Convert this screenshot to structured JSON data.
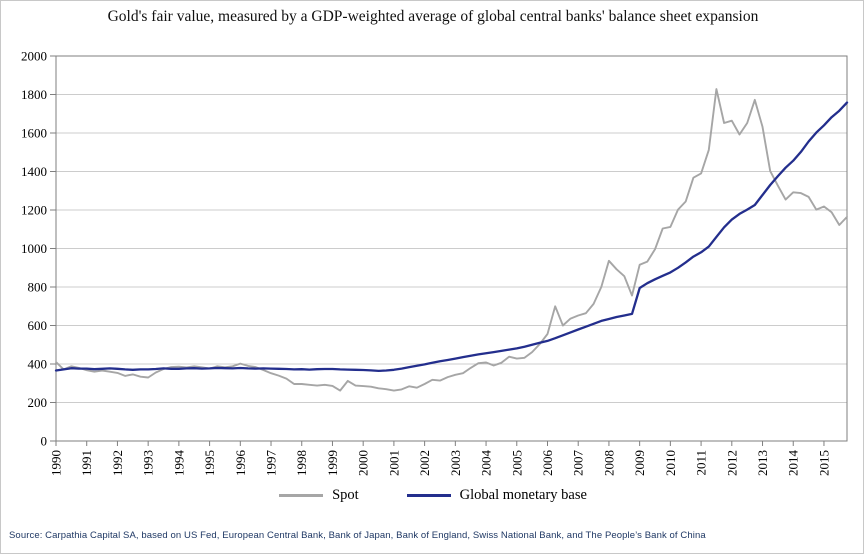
{
  "figure": {
    "source": "Source: Carpathia Capital SA, based on US Fed, European Central Bank, Bank of Japan, Bank of England, Swiss National Bank, and The People’s Bank of China"
  },
  "chart_data": {
    "type": "line",
    "title": "Gold's fair value, measured by a GDP-weighted average of global central banks' balance sheet expansion",
    "xlabel": "",
    "ylabel": "",
    "ylim": [
      0,
      2000
    ],
    "y_ticks": [
      0,
      200,
      400,
      600,
      800,
      1000,
      1200,
      1400,
      1600,
      1800,
      2000
    ],
    "x_start": 1990,
    "x_step": 0.25,
    "x_axis_end": 2015.75,
    "x_tick_labels": [
      "1990",
      "1991",
      "1992",
      "1993",
      "1994",
      "1995",
      "1996",
      "1997",
      "1998",
      "1999",
      "2000",
      "2001",
      "2002",
      "2003",
      "2004",
      "2005",
      "2006",
      "2007",
      "2008",
      "2009",
      "2010",
      "2011",
      "2012",
      "2013",
      "2014",
      "2015"
    ],
    "grid": "horizontal",
    "legend_position": "bottom",
    "grid_color": "#cccccc",
    "axis_color": "#7f7f7f",
    "series": [
      {
        "name": "Spot",
        "color": "#a6a6a6",
        "width": 1.9,
        "values": [
          410,
          372,
          388,
          380,
          368,
          360,
          366,
          360,
          354,
          338,
          346,
          334,
          330,
          356,
          374,
          384,
          386,
          382,
          388,
          383,
          376,
          388,
          383,
          388,
          402,
          390,
          384,
          369,
          352,
          340,
          324,
          296,
          296,
          292,
          288,
          292,
          286,
          262,
          312,
          288,
          285,
          282,
          274,
          269,
          262,
          268,
          284,
          277,
          296,
          318,
          314,
          332,
          344,
          352,
          380,
          404,
          408,
          392,
          406,
          438,
          428,
          432,
          462,
          504,
          556,
          700,
          600,
          636,
          652,
          664,
          712,
          800,
          936,
          892,
          856,
          756,
          916,
          932,
          996,
          1104,
          1112,
          1202,
          1244,
          1368,
          1390,
          1512,
          1828,
          1652,
          1664,
          1592,
          1652,
          1772,
          1632,
          1402,
          1326,
          1254,
          1292,
          1288,
          1268,
          1202,
          1218,
          1188,
          1122,
          1164
        ]
      },
      {
        "name": "Global monetary base",
        "color": "#232e8d",
        "width": 2.3,
        "values": [
          366,
          372,
          378,
          376,
          376,
          373,
          375,
          377,
          375,
          372,
          370,
          372,
          372,
          374,
          377,
          375,
          375,
          377,
          378,
          376,
          377,
          379,
          378,
          377,
          379,
          377,
          376,
          377,
          376,
          375,
          374,
          372,
          373,
          371,
          373,
          374,
          374,
          372,
          371,
          370,
          369,
          367,
          364,
          366,
          370,
          376,
          384,
          391,
          398,
          406,
          414,
          421,
          428,
          436,
          443,
          450,
          456,
          462,
          468,
          475,
          481,
          490,
          500,
          510,
          520,
          534,
          549,
          564,
          579,
          594,
          609,
          624,
          634,
          644,
          652,
          660,
          795,
          820,
          840,
          858,
          876,
          900,
          928,
          958,
          980,
          1010,
          1060,
          1110,
          1150,
          1180,
          1202,
          1226,
          1278,
          1330,
          1376,
          1420,
          1456,
          1502,
          1556,
          1602,
          1640,
          1682,
          1716,
          1758
        ]
      }
    ]
  }
}
